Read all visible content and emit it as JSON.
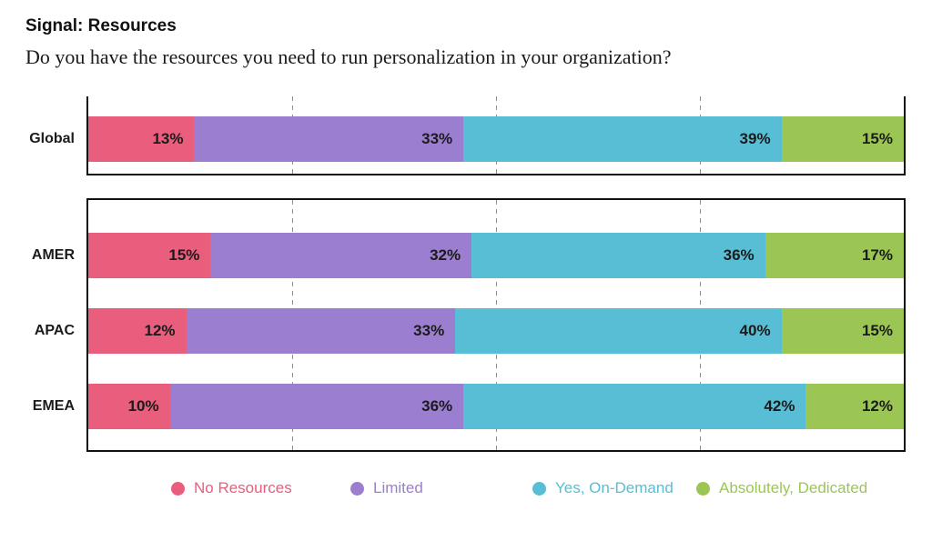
{
  "header": {
    "title": "Signal: Resources",
    "question": "Do you have the resources you need to run personalization in your organization?"
  },
  "chart_data": {
    "type": "bar",
    "subtype": "horizontal-stacked",
    "title": "Signal: Resources",
    "subtitle": "Do you have the resources you need to run personalization in your organization?",
    "categories": [
      "Global",
      "AMER",
      "APAC",
      "EMEA"
    ],
    "groups": [
      [
        0
      ],
      [
        1,
        2,
        3
      ]
    ],
    "series": [
      {
        "name": "No Resources",
        "color": "#e95d7d",
        "values": [
          13,
          15,
          12,
          10
        ]
      },
      {
        "name": "Limited",
        "color": "#9b7ed0",
        "values": [
          33,
          32,
          33,
          36
        ]
      },
      {
        "name": "Yes, On-Demand",
        "color": "#58bed6",
        "values": [
          39,
          36,
          40,
          42
        ]
      },
      {
        "name": "Absolutely, Dedicated",
        "color": "#9cc653",
        "values": [
          15,
          17,
          15,
          12
        ]
      }
    ],
    "value_suffix": "%",
    "xlim": [
      0,
      100
    ],
    "gridlines_percent": [
      25,
      50,
      75
    ],
    "grid": "dashed",
    "legend_position": "bottom"
  }
}
